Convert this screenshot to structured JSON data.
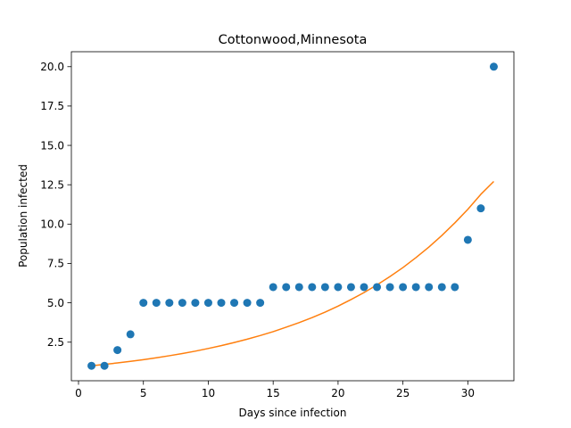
{
  "chart_data": {
    "type": "scatter",
    "title": "Cottonwood,Minnesota",
    "xlabel": "Days since infection",
    "ylabel": "Population infected",
    "xlim": [
      -0.55,
      33.55
    ],
    "ylim": [
      0.05,
      20.95
    ],
    "xticks": [
      0,
      5,
      10,
      15,
      20,
      25,
      30
    ],
    "xtick_labels": [
      "0",
      "5",
      "10",
      "15",
      "20",
      "25",
      "30"
    ],
    "yticks": [
      2.5,
      5.0,
      7.5,
      10.0,
      12.5,
      15.0,
      17.5,
      20.0
    ],
    "ytick_labels": [
      "2.5",
      "5.0",
      "7.5",
      "10.0",
      "12.5",
      "15.0",
      "17.5",
      "20.0"
    ],
    "grid": false,
    "series": [
      {
        "kind": "scatter",
        "color": "#1f77b4",
        "x": [
          1,
          2,
          3,
          4,
          5,
          6,
          7,
          8,
          9,
          10,
          11,
          12,
          13,
          14,
          15,
          16,
          17,
          18,
          19,
          20,
          21,
          22,
          23,
          24,
          25,
          26,
          27,
          28,
          29,
          30,
          31,
          32
        ],
        "y": [
          1,
          1,
          2,
          3,
          5,
          5,
          5,
          5,
          5,
          5,
          5,
          5,
          5,
          5,
          6,
          6,
          6,
          6,
          6,
          6,
          6,
          6,
          6,
          6,
          6,
          6,
          6,
          6,
          6,
          9,
          11,
          20
        ]
      },
      {
        "kind": "line",
        "color": "#ff7f0e",
        "x": [
          1,
          2,
          3,
          4,
          5,
          6,
          7,
          8,
          9,
          10,
          11,
          12,
          13,
          14,
          15,
          16,
          17,
          18,
          19,
          20,
          21,
          22,
          23,
          24,
          25,
          26,
          27,
          28,
          29,
          30,
          31,
          32
        ],
        "y": [
          1.0,
          1.09,
          1.18,
          1.28,
          1.39,
          1.51,
          1.64,
          1.78,
          1.93,
          2.1,
          2.28,
          2.48,
          2.69,
          2.92,
          3.17,
          3.45,
          3.74,
          4.06,
          4.41,
          4.79,
          5.21,
          5.65,
          6.14,
          6.67,
          7.24,
          7.87,
          8.54,
          9.28,
          10.08,
          10.94,
          11.89,
          12.71
        ]
      }
    ]
  }
}
